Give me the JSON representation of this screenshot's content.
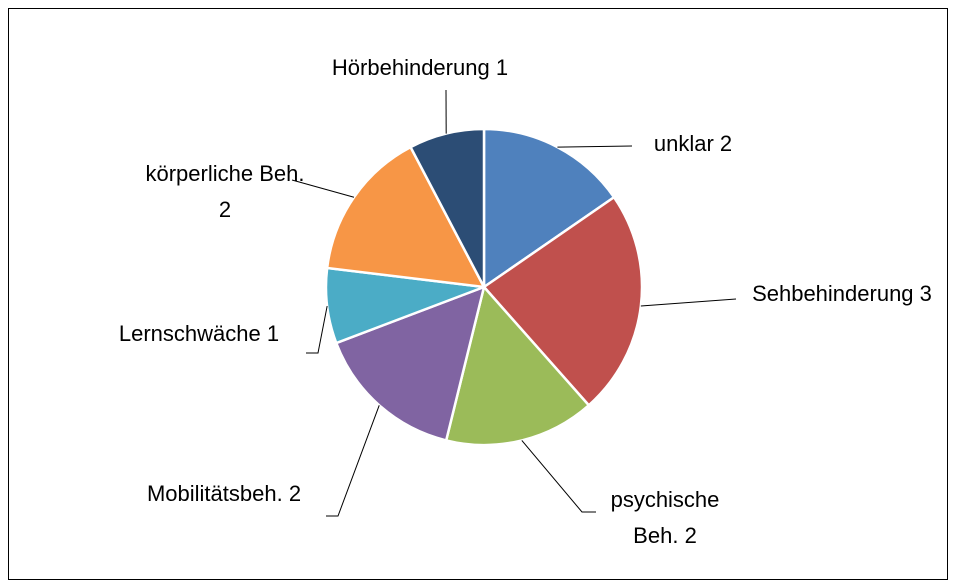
{
  "chart_data": {
    "type": "pie",
    "categories": [
      "unklar",
      "Sehbehinderung",
      "psychische Beh.",
      "Mobilitätsbeh.",
      "Lernschwäche",
      "körperliche Beh.",
      "Hörbehinderung"
    ],
    "values": [
      2,
      3,
      2,
      2,
      1,
      2,
      1
    ],
    "colors": [
      "#4f81bd",
      "#c0504d",
      "#9bbb59",
      "#8064a2",
      "#4bacc6",
      "#f79646",
      "#2c4d75"
    ]
  }
}
